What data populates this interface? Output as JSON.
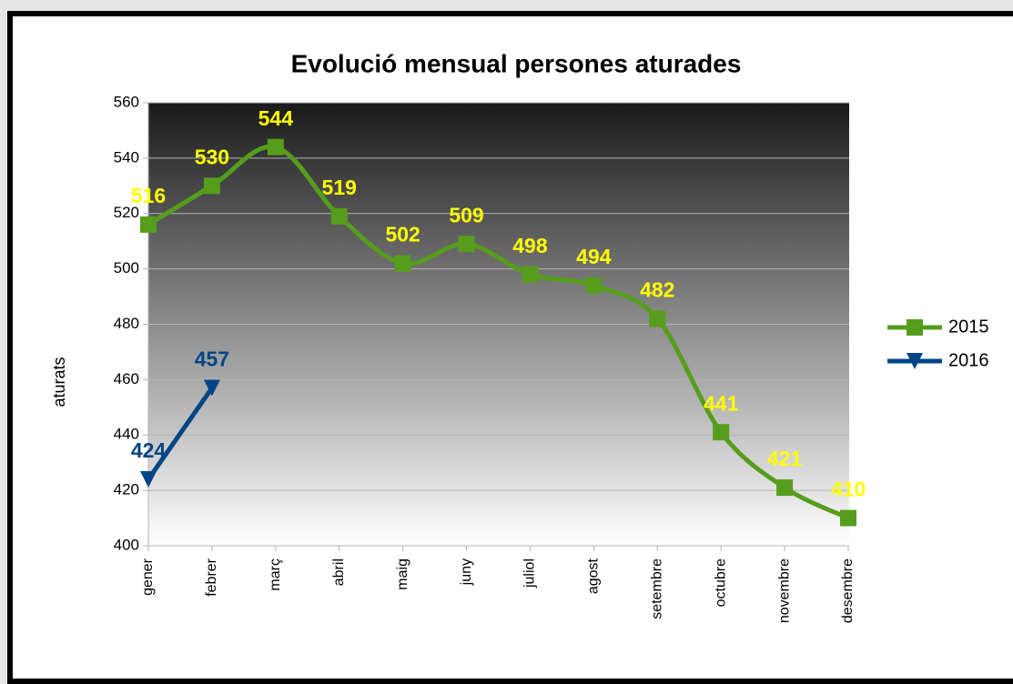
{
  "chart_data": {
    "type": "line",
    "title": "Evolució mensual persones aturades",
    "y_label": "aturats",
    "categories": [
      "gener",
      "febrer",
      "març",
      "abril",
      "maig",
      "juny",
      "juliol",
      "agost",
      "setembre",
      "octubre",
      "novembre",
      "desembre"
    ],
    "series": [
      {
        "name": "2015",
        "color": "#579d1c",
        "label_color": "#ffff00",
        "marker": "square",
        "smooth": true,
        "values": [
          516,
          530,
          544,
          519,
          502,
          509,
          498,
          494,
          482,
          441,
          421,
          410
        ]
      },
      {
        "name": "2016",
        "color": "#004586",
        "label_color": "#004586",
        "marker": "triangle-down",
        "smooth": false,
        "values": [
          424,
          457,
          null,
          null,
          null,
          null,
          null,
          null,
          null,
          null,
          null,
          null
        ]
      }
    ],
    "ylim": [
      400,
      560
    ],
    "yticks": [
      400,
      420,
      440,
      460,
      480,
      500,
      520,
      540,
      560
    ],
    "grid": true,
    "legend": "right"
  }
}
